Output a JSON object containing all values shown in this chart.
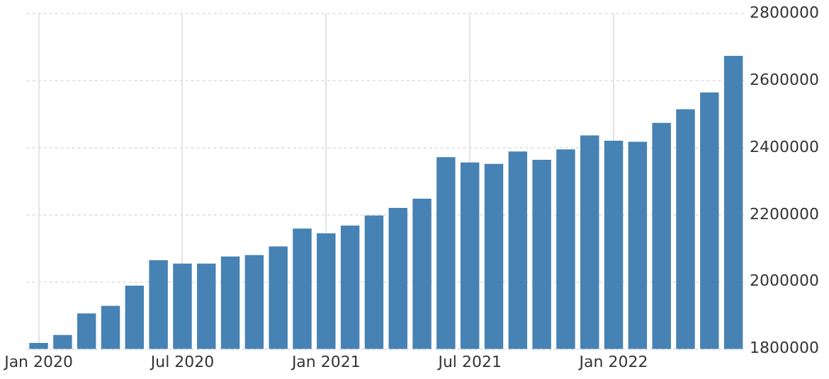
{
  "chart_data": {
    "type": "bar",
    "categories": [
      "Jan 2020",
      null,
      null,
      null,
      null,
      null,
      "Jul 2020",
      null,
      null,
      null,
      null,
      null,
      "Jan 2021",
      null,
      null,
      null,
      null,
      null,
      "Jul 2021",
      null,
      null,
      null,
      null,
      null,
      "Jan 2022",
      null,
      null,
      null,
      null,
      null
    ],
    "values": [
      1818000,
      1842000,
      1906000,
      1929000,
      1989000,
      2065000,
      2055000,
      2055000,
      2076000,
      2080000,
      2106000,
      2159000,
      2145000,
      2168000,
      2198000,
      2221000,
      2248000,
      2372000,
      2356000,
      2352000,
      2389000,
      2364000,
      2395000,
      2437000,
      2421000,
      2418000,
      2474000,
      2515000,
      2565000,
      2674000
    ],
    "color": "#4682b4",
    "ylim": [
      1800000,
      2800000
    ],
    "yticks": [
      1800000,
      2000000,
      2200000,
      2400000,
      2600000,
      2800000
    ],
    "grid": true
  }
}
